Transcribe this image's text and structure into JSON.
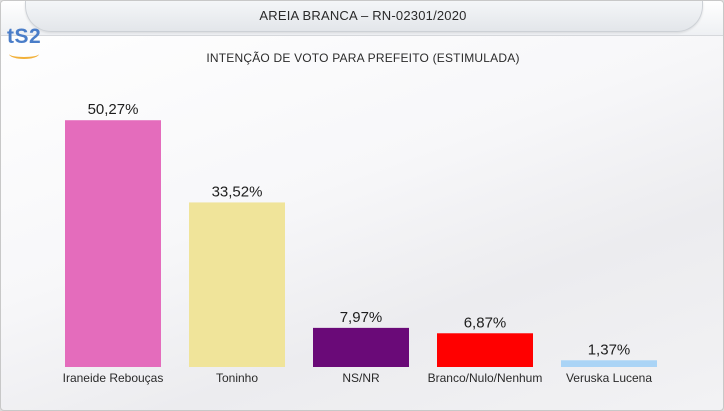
{
  "header": {
    "title": "AREIA BRANCA – RN-02301/2020",
    "logo_text": "tS2"
  },
  "chart_data": {
    "type": "bar",
    "title": "INTENÇÃO DE VOTO PARA PREFEITO (ESTIMULADA)",
    "categories": [
      "Iraneide Rebouças",
      "Toninho",
      "NS/NR",
      "Branco/Nulo/Nenhum",
      "Veruska Lucena"
    ],
    "values": [
      50.27,
      33.52,
      7.97,
      6.87,
      1.37
    ],
    "value_labels": [
      "50,27%",
      "33,52%",
      "7,97%",
      "6,87%",
      "1,37%"
    ],
    "colors": [
      "#e46cbc",
      "#f0e49a",
      "#6a0a78",
      "#ff0000",
      "#aad4f6"
    ],
    "ylim": [
      0,
      55
    ],
    "grid": false,
    "legend": "none",
    "xlabel": "",
    "ylabel": ""
  }
}
